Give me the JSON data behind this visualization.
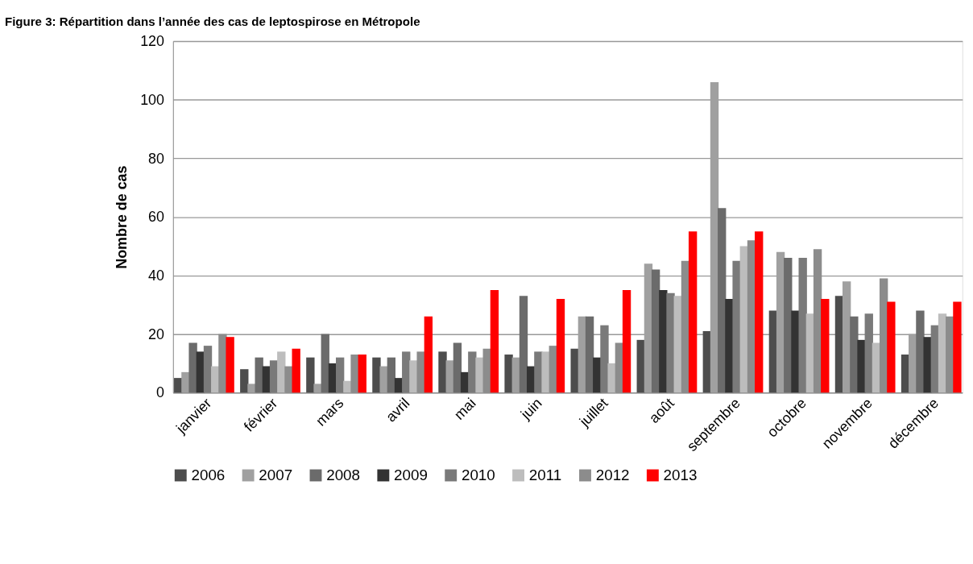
{
  "chart_data": {
    "type": "bar",
    "title": "Figure 3: Répartition dans l’année des cas de leptospirose en Métropole",
    "ylabel": "Nombre de cas",
    "categories": [
      "janvier",
      "février",
      "mars",
      "avril",
      "mai",
      "juin",
      "juillet",
      "août",
      "septembre",
      "octobre",
      "novembre",
      "décembre"
    ],
    "series": [
      {
        "name": "2006",
        "color": "#4d4d4d",
        "values": [
          5,
          8,
          12,
          12,
          14,
          13,
          15,
          18,
          21,
          28,
          33,
          13
        ]
      },
      {
        "name": "2007",
        "color": "#a0a0a0",
        "values": [
          7,
          3,
          3,
          9,
          11,
          12,
          26,
          44,
          106,
          48,
          38,
          20
        ]
      },
      {
        "name": "2008",
        "color": "#6b6b6b",
        "values": [
          17,
          12,
          20,
          12,
          17,
          33,
          26,
          42,
          63,
          46,
          26,
          28
        ]
      },
      {
        "name": "2009",
        "color": "#333333",
        "values": [
          14,
          9,
          10,
          5,
          7,
          9,
          12,
          35,
          32,
          28,
          18,
          19
        ]
      },
      {
        "name": "2010",
        "color": "#7a7a7a",
        "values": [
          16,
          11,
          12,
          14,
          14,
          14,
          23,
          34,
          45,
          46,
          27,
          23
        ]
      },
      {
        "name": "2011",
        "color": "#bdbdbd",
        "values": [
          9,
          14,
          4,
          11,
          12,
          14,
          10,
          33,
          50,
          27,
          17,
          27
        ]
      },
      {
        "name": "2012",
        "color": "#8c8c8c",
        "values": [
          20,
          9,
          13,
          14,
          15,
          16,
          17,
          45,
          52,
          49,
          39,
          26
        ]
      },
      {
        "name": "2013",
        "color": "#ff0000",
        "values": [
          19,
          15,
          13,
          26,
          35,
          32,
          35,
          55,
          55,
          32,
          31,
          31
        ]
      }
    ],
    "ylim": [
      0,
      120
    ],
    "yticks": [
      0,
      20,
      40,
      60,
      80,
      100,
      120
    ],
    "grid": "y",
    "legend": "bottom"
  }
}
